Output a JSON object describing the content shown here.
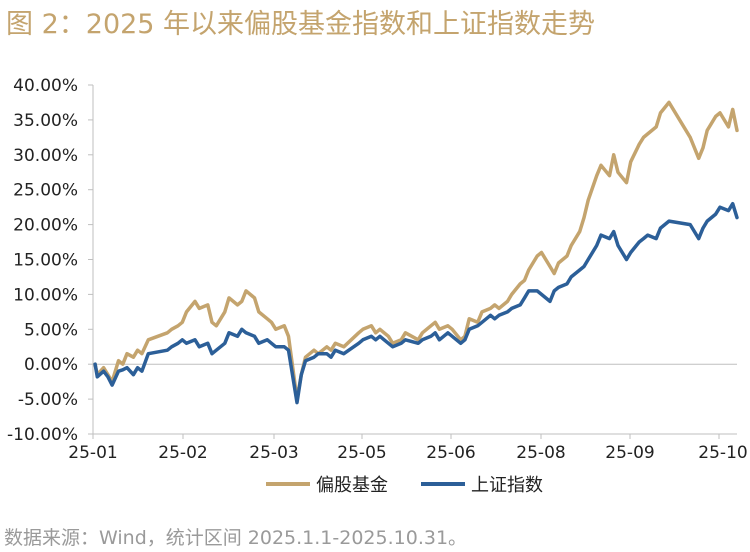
{
  "title": "图 2：2025 年以来偏股基金指数和上证指数走势",
  "source": "数据来源：Wind，统计区间 2025.1.1-2025.10.31。",
  "chart_data": {
    "type": "line",
    "title": "",
    "xlabel": "",
    "ylabel": "",
    "ylim": [
      -10,
      40
    ],
    "y_ticks": [
      "40.00%",
      "35.00%",
      "30.00%",
      "25.00%",
      "20.00%",
      "15.00%",
      "10.00%",
      "5.00%",
      "0.00%",
      "-5.00%",
      "-10.00%"
    ],
    "x_ticks": [
      "25-01",
      "25-02",
      "25-03",
      "25-05",
      "25-06",
      "25-08",
      "25-09",
      "25-10"
    ],
    "legend": "bottom",
    "grid": false,
    "x": [
      "2025-01-02",
      "2025-01-03",
      "2025-01-06",
      "2025-01-08",
      "2025-01-10",
      "2025-01-13",
      "2025-01-15",
      "2025-01-17",
      "2025-01-20",
      "2025-01-22",
      "2025-01-24",
      "2025-01-27",
      "2025-02-05",
      "2025-02-07",
      "2025-02-10",
      "2025-02-12",
      "2025-02-14",
      "2025-02-18",
      "2025-02-20",
      "2025-02-24",
      "2025-02-26",
      "2025-02-28",
      "2025-03-04",
      "2025-03-06",
      "2025-03-10",
      "2025-03-12",
      "2025-03-14",
      "2025-03-18",
      "2025-03-20",
      "2025-03-24",
      "2025-03-26",
      "2025-03-28",
      "2025-04-01",
      "2025-04-03",
      "2025-04-07",
      "2025-04-09",
      "2025-04-11",
      "2025-04-15",
      "2025-04-17",
      "2025-04-21",
      "2025-04-23",
      "2025-04-25",
      "2025-04-29",
      "2025-05-06",
      "2025-05-08",
      "2025-05-12",
      "2025-05-14",
      "2025-05-16",
      "2025-05-20",
      "2025-05-22",
      "2025-05-26",
      "2025-05-28",
      "2025-06-03",
      "2025-06-05",
      "2025-06-09",
      "2025-06-11",
      "2025-06-13",
      "2025-06-17",
      "2025-06-19",
      "2025-06-23",
      "2025-06-25",
      "2025-06-27",
      "2025-07-01",
      "2025-07-03",
      "2025-07-07",
      "2025-07-09",
      "2025-07-11",
      "2025-07-15",
      "2025-07-17",
      "2025-07-21",
      "2025-07-23",
      "2025-07-25",
      "2025-07-29",
      "2025-07-31",
      "2025-08-04",
      "2025-08-06",
      "2025-08-08",
      "2025-08-12",
      "2025-08-14",
      "2025-08-18",
      "2025-08-20",
      "2025-08-22",
      "2025-08-26",
      "2025-08-28",
      "2025-09-01",
      "2025-09-03",
      "2025-09-05",
      "2025-09-09",
      "2025-09-11",
      "2025-09-15",
      "2025-09-17",
      "2025-09-19",
      "2025-09-23",
      "2025-09-25",
      "2025-09-29",
      "2025-10-09",
      "2025-10-13",
      "2025-10-15",
      "2025-10-17",
      "2025-10-21",
      "2025-10-23",
      "2025-10-27",
      "2025-10-29",
      "2025-10-31"
    ],
    "series": [
      {
        "name": "偏股基金",
        "color": "#c4a46e",
        "values": [
          0.0,
          -1.5,
          -0.5,
          -1.5,
          -2.5,
          0.5,
          0.0,
          1.5,
          1.0,
          2.0,
          1.5,
          3.5,
          4.5,
          5.0,
          5.5,
          6.0,
          7.5,
          9.0,
          8.0,
          8.5,
          6.0,
          5.5,
          7.5,
          9.5,
          8.5,
          9.0,
          10.5,
          9.5,
          7.5,
          6.5,
          6.0,
          5.0,
          5.5,
          4.0,
          -5.0,
          -1.5,
          1.0,
          2.0,
          1.5,
          2.5,
          2.0,
          3.0,
          2.5,
          4.5,
          5.0,
          5.5,
          4.5,
          5.0,
          4.0,
          3.0,
          3.5,
          4.5,
          3.5,
          4.5,
          5.5,
          6.0,
          5.0,
          5.5,
          5.0,
          3.5,
          4.0,
          6.5,
          6.0,
          7.5,
          8.0,
          8.5,
          8.0,
          9.0,
          10.0,
          11.5,
          12.0,
          13.5,
          15.5,
          16.0,
          14.0,
          13.0,
          14.5,
          15.5,
          17.0,
          19.0,
          21.0,
          23.5,
          27.0,
          28.5,
          27.0,
          30.0,
          27.5,
          26.0,
          29.0,
          31.5,
          32.5,
          33.0,
          34.0,
          36.0,
          37.5,
          32.5,
          29.5,
          31.0,
          33.5,
          35.5,
          36.0,
          34.0,
          36.5,
          33.5
        ]
      },
      {
        "name": "上证指数",
        "color": "#2c5f98",
        "values": [
          0.0,
          -1.8,
          -1.0,
          -1.8,
          -3.0,
          -1.0,
          -0.8,
          -0.5,
          -1.5,
          -0.5,
          -1.0,
          1.5,
          2.0,
          2.5,
          3.0,
          3.5,
          3.0,
          3.5,
          2.5,
          3.0,
          1.5,
          2.0,
          3.0,
          4.5,
          4.0,
          5.0,
          4.5,
          4.0,
          3.0,
          3.5,
          3.0,
          2.5,
          2.5,
          2.0,
          -5.5,
          -1.5,
          0.5,
          1.0,
          1.5,
          1.5,
          1.0,
          2.0,
          1.5,
          3.0,
          3.5,
          4.0,
          3.5,
          4.0,
          3.0,
          2.5,
          3.0,
          3.5,
          3.0,
          3.5,
          4.0,
          4.5,
          3.5,
          4.5,
          4.0,
          3.0,
          3.5,
          5.0,
          5.5,
          6.0,
          7.0,
          6.5,
          7.0,
          7.5,
          8.0,
          8.5,
          9.5,
          10.5,
          10.5,
          10.0,
          9.0,
          10.5,
          11.0,
          11.5,
          12.5,
          13.5,
          14.0,
          15.0,
          17.0,
          18.5,
          18.0,
          19.0,
          17.0,
          15.0,
          16.0,
          17.5,
          18.0,
          18.5,
          18.0,
          19.5,
          20.5,
          20.0,
          18.0,
          19.5,
          20.5,
          21.5,
          22.5,
          22.0,
          23.0,
          21.0
        ]
      }
    ]
  }
}
